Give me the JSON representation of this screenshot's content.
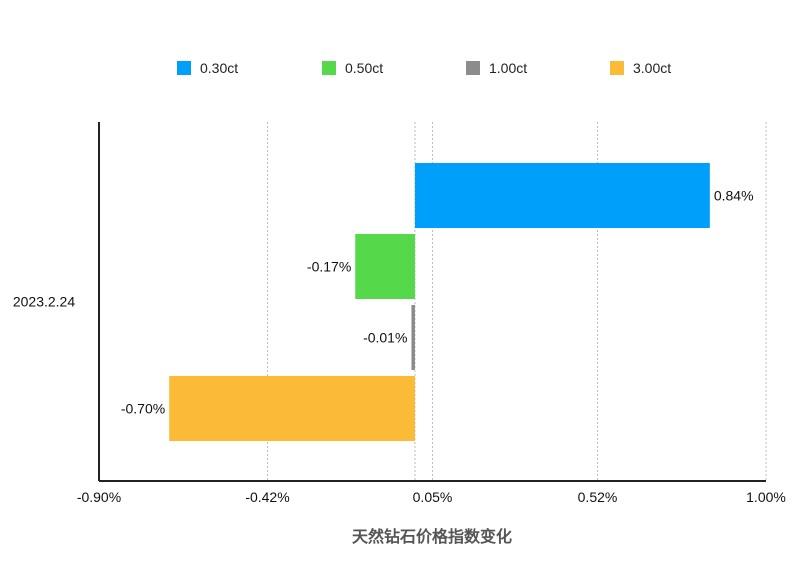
{
  "chart_data": {
    "type": "bar",
    "orientation": "horizontal",
    "categories": [
      "2023.2.24"
    ],
    "series": [
      {
        "name": "0.30ct",
        "values": [
          0.84
        ],
        "label": "0.84%",
        "color": "#009ffa"
      },
      {
        "name": "0.50ct",
        "values": [
          -0.17
        ],
        "label": "-0.17%",
        "color": "#55d94a"
      },
      {
        "name": "1.00ct",
        "values": [
          -0.01
        ],
        "label": "-0.01%",
        "color": "#8c8c8c"
      },
      {
        "name": "3.00ct",
        "values": [
          -0.7
        ],
        "label": "-0.70%",
        "color": "#fbbb36"
      }
    ],
    "x_ticks": [
      -0.9,
      -0.42,
      0.05,
      0.52,
      1.0
    ],
    "x_tick_labels": [
      "-0.90%",
      "-0.42%",
      "0.05%",
      "0.52%",
      "1.00%"
    ],
    "xlim": [
      -0.9,
      1.0
    ],
    "xlabel": "天然钻石价格指数变化",
    "ylabel": "",
    "legend_position": "top",
    "grid": "vertical dotted",
    "unit": "%"
  }
}
